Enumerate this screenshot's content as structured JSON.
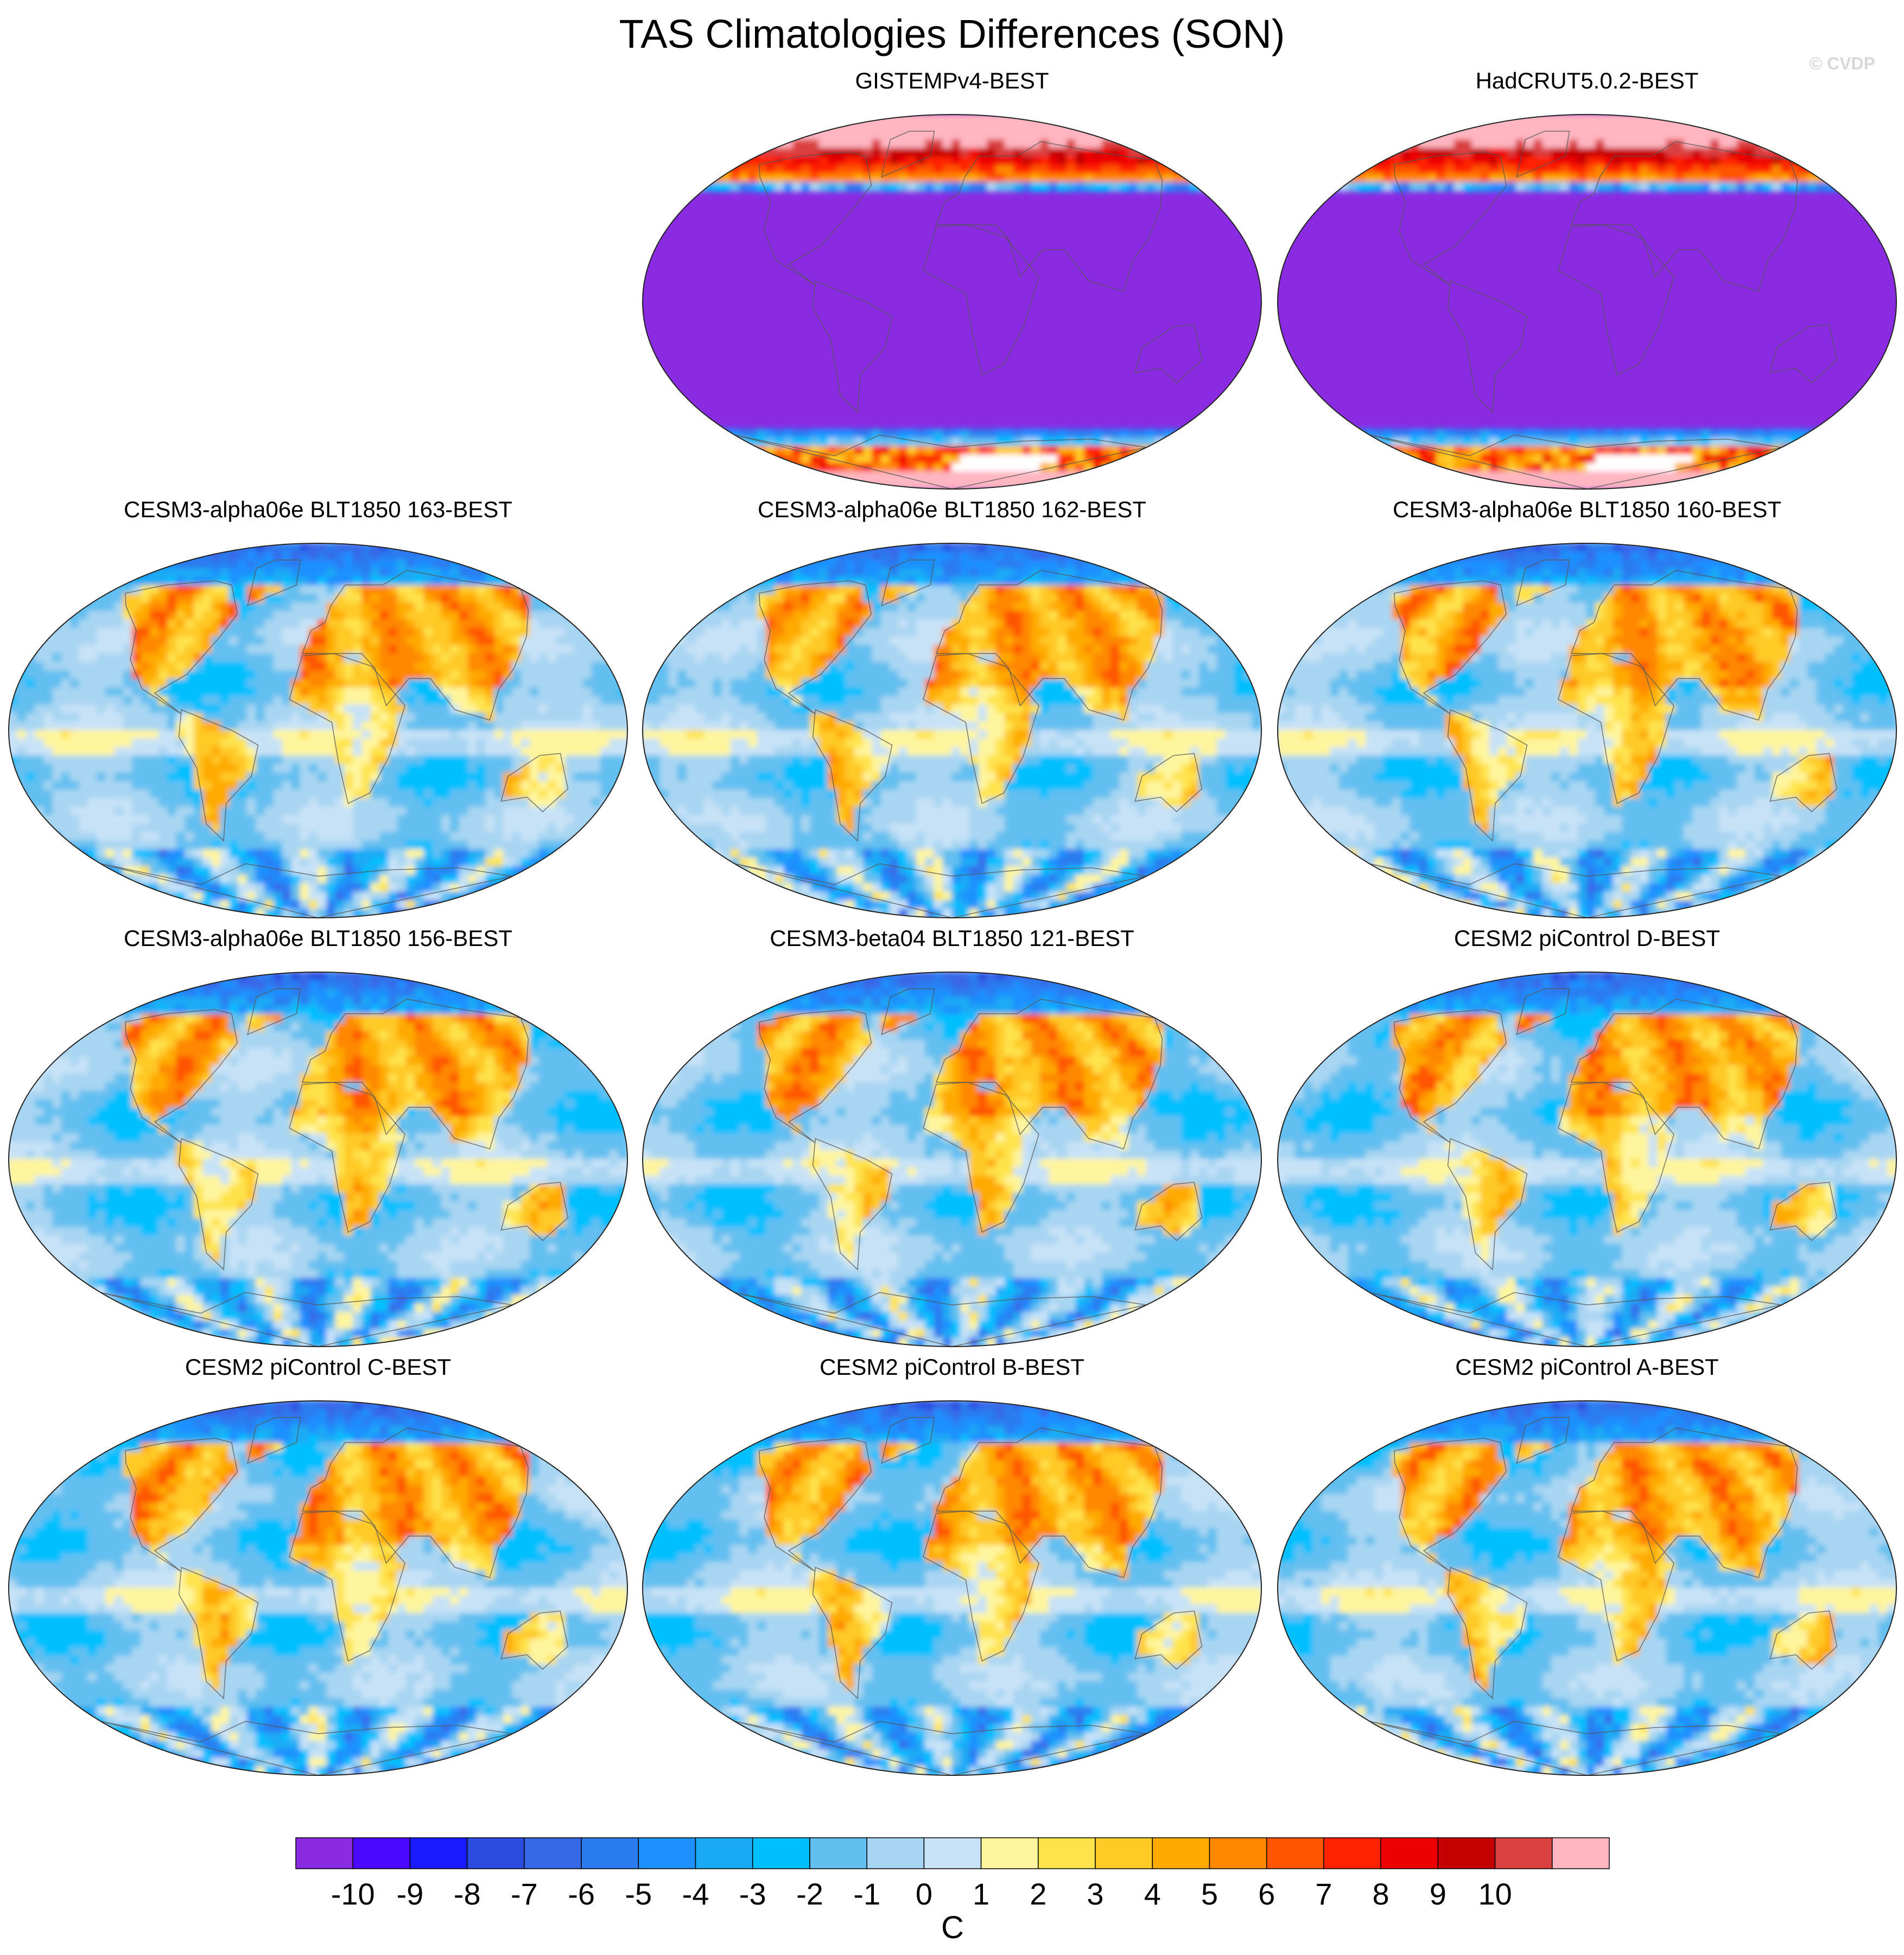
{
  "title": "TAS Climatologies Differences (SON)",
  "watermark": "© CVDP",
  "colorbar": {
    "unit": "C",
    "tick_labels": [
      "-10",
      "-9",
      "-8",
      "-7",
      "-6",
      "-5",
      "-4",
      "-3",
      "-2",
      "-1",
      "0",
      "1",
      "2",
      "3",
      "4",
      "5",
      "6",
      "7",
      "8",
      "9",
      "10"
    ],
    "colors": [
      "#8a2be2",
      "#4b0aff",
      "#1a1aff",
      "#2c4ce0",
      "#3768e8",
      "#2a7cf0",
      "#1e90ff",
      "#1aaaf5",
      "#00bfff",
      "#63bff0",
      "#a8d5f2",
      "#c7e2f7",
      "#fff59e",
      "#ffe34d",
      "#ffc926",
      "#ffaa00",
      "#ff8800",
      "#ff5500",
      "#ff2200",
      "#ee0000",
      "#c40000",
      "#d94040",
      "#ffb6c1"
    ]
  },
  "chart_data": [
    {
      "type": "heatmap",
      "name": "GISTEMPv4-BEST",
      "kind": "obs",
      "panel": [
        0,
        1
      ]
    },
    {
      "type": "heatmap",
      "name": "HadCRUT5.0.2-BEST",
      "kind": "obs",
      "panel": [
        0,
        2
      ]
    },
    {
      "type": "heatmap",
      "name": "CESM3-alpha06e BLT1850 163-BEST",
      "kind": "model",
      "panel": [
        1,
        0
      ]
    },
    {
      "type": "heatmap",
      "name": "CESM3-alpha06e BLT1850 162-BEST",
      "kind": "model",
      "panel": [
        1,
        1
      ]
    },
    {
      "type": "heatmap",
      "name": "CESM3-alpha06e BLT1850 160-BEST",
      "kind": "model",
      "panel": [
        1,
        2
      ]
    },
    {
      "type": "heatmap",
      "name": "CESM3-alpha06e BLT1850 156-BEST",
      "kind": "model",
      "panel": [
        2,
        0
      ]
    },
    {
      "type": "heatmap",
      "name": "CESM3-beta04 BLT1850 121-BEST",
      "kind": "model",
      "panel": [
        2,
        1
      ]
    },
    {
      "type": "heatmap",
      "name": "CESM2 piControl D-BEST",
      "kind": "model",
      "panel": [
        2,
        2
      ]
    },
    {
      "type": "heatmap",
      "name": "CESM2 piControl C-BEST",
      "kind": "model",
      "panel": [
        3,
        0
      ]
    },
    {
      "type": "heatmap",
      "name": "CESM2 piControl B-BEST",
      "kind": "model",
      "panel": [
        3,
        1
      ]
    },
    {
      "type": "heatmap",
      "name": "CESM2 piControl A-BEST",
      "kind": "model",
      "panel": [
        3,
        2
      ]
    }
  ]
}
